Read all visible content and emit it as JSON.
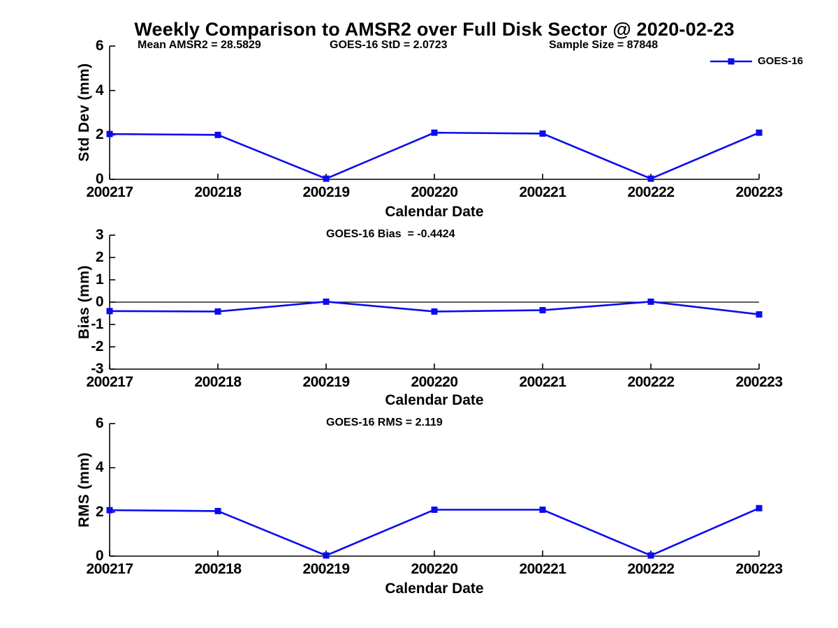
{
  "title": "Weekly Comparison to AMSR2 over Full Disk Sector @ 2020-02-23",
  "legend": {
    "label": "GOES-16",
    "position": "top-right"
  },
  "colors": {
    "line": "#0b0bef",
    "axis": "#000000",
    "text": "#000000",
    "background": "#ffffff"
  },
  "chart_data": [
    {
      "type": "line",
      "panel": "std-dev",
      "categories": [
        "200217",
        "200218",
        "200219",
        "200220",
        "200221",
        "200222",
        "200223"
      ],
      "series": [
        {
          "name": "GOES-16",
          "values": [
            2.04,
            2.0,
            0.03,
            2.1,
            2.06,
            0.03,
            2.1
          ]
        }
      ],
      "xlabel": "Calendar Date",
      "ylabel": "Std Dev (mm)",
      "ylim": [
        0,
        6
      ],
      "yticks": [
        0,
        2,
        4,
        6
      ],
      "zero_line": false,
      "grid": false,
      "legend_visible": true,
      "annotations": [
        {
          "text": "Mean AMSR2 = 28.5829"
        },
        {
          "text": "GOES-16 StD = 2.0723"
        },
        {
          "text": "Sample Size = 87848"
        }
      ]
    },
    {
      "type": "line",
      "panel": "bias",
      "categories": [
        "200217",
        "200218",
        "200219",
        "200220",
        "200221",
        "200222",
        "200223"
      ],
      "series": [
        {
          "name": "GOES-16",
          "values": [
            -0.4,
            -0.42,
            0.02,
            -0.42,
            -0.36,
            0.02,
            -0.55
          ]
        }
      ],
      "xlabel": "Calendar Date",
      "ylabel": "Bias (mm)",
      "ylim": [
        -3,
        3
      ],
      "yticks": [
        3,
        2,
        1,
        0,
        -1,
        -2,
        -3
      ],
      "zero_line": true,
      "grid": false,
      "legend_visible": false,
      "annotations": [
        {
          "text": "GOES-16 Bias  = -0.4424"
        }
      ]
    },
    {
      "type": "line",
      "panel": "rms",
      "categories": [
        "200217",
        "200218",
        "200219",
        "200220",
        "200221",
        "200222",
        "200223"
      ],
      "series": [
        {
          "name": "GOES-16",
          "values": [
            2.08,
            2.04,
            0.03,
            2.1,
            2.1,
            0.03,
            2.17
          ]
        }
      ],
      "xlabel": "Calendar Date",
      "ylabel": "RMS (mm)",
      "ylim": [
        0,
        6
      ],
      "yticks": [
        0,
        2,
        4,
        6
      ],
      "zero_line": false,
      "grid": false,
      "legend_visible": false,
      "annotations": [
        {
          "text": "GOES-16 RMS = 2.119"
        }
      ]
    }
  ]
}
